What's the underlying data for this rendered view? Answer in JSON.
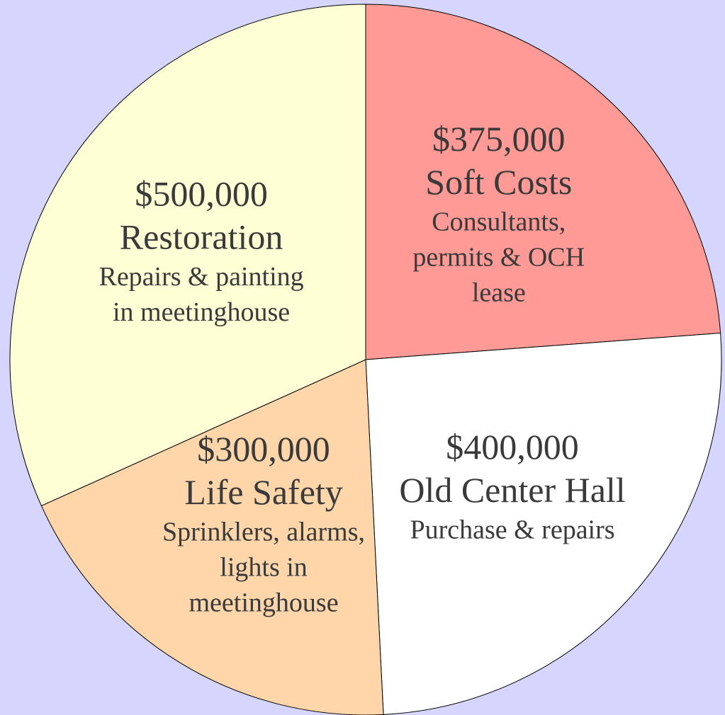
{
  "chart_data": {
    "type": "pie",
    "categories": [
      "Soft Costs",
      "Old Center Hall",
      "Life Safety",
      "Restoration"
    ],
    "values": [
      375000,
      400000,
      300000,
      500000
    ],
    "value_labels": [
      "$375,000",
      "$400,000",
      "$300,000",
      "$500,000"
    ],
    "descriptions": [
      [
        "Consultants,",
        "permits & OCH",
        "lease"
      ],
      [
        "Purchase & repairs"
      ],
      [
        "Sprinklers, alarms,",
        "lights in",
        "meetinghouse"
      ],
      [
        "Repairs & painting",
        "in meetinghouse"
      ]
    ],
    "colors": [
      "#ff9a96",
      "#ffffff",
      "#ffd5aa",
      "#ffffd6"
    ],
    "start_angle": 0,
    "direction": "clockwise"
  }
}
